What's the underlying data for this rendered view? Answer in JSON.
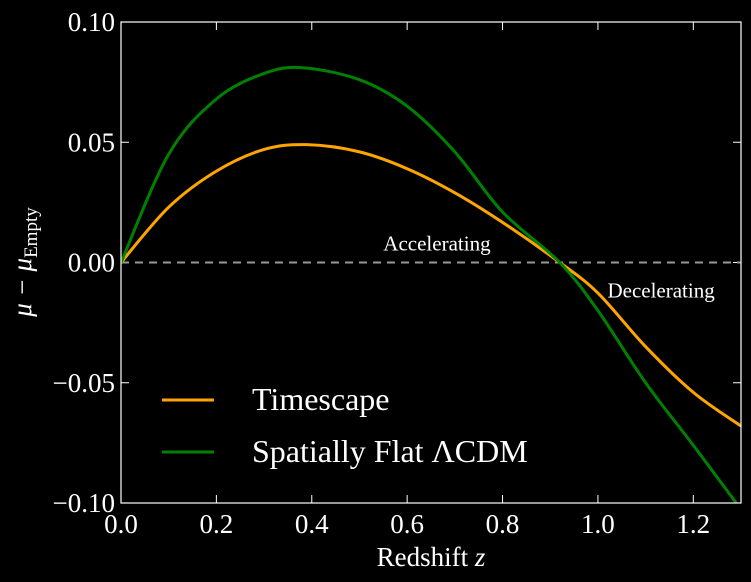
{
  "chart_data": {
    "type": "line",
    "title": "",
    "xlabel": "Redshift",
    "xlabel_var": "z",
    "ylabel": "μ − μ",
    "ylabel_sub": "Empty",
    "xlim": [
      0.0,
      1.3
    ],
    "ylim": [
      -0.1,
      0.1
    ],
    "xticks": [
      "0.0",
      "0.2",
      "0.4",
      "0.6",
      "0.8",
      "1.0",
      "1.2"
    ],
    "xtick_values": [
      0,
      0.2,
      0.4,
      0.6,
      0.8,
      1.0,
      1.2
    ],
    "yticks": [
      "0.10",
      "0.05",
      "0.00",
      "−0.05",
      "−0.10"
    ],
    "ytick_values": [
      0.1,
      0.05,
      0.0,
      -0.05,
      -0.1
    ],
    "grid": false,
    "legend_position": "lower-left",
    "reference_line": {
      "y": 0.0,
      "style": "dashed",
      "color": "#999999"
    },
    "annotations": [
      {
        "text": "Accelerating",
        "x": 0.55,
        "y": 0.005
      },
      {
        "text": "Decelerating",
        "x": 1.02,
        "y": -0.012
      }
    ],
    "series": [
      {
        "name": "Timescape",
        "color": "#ffa500",
        "x": [
          0,
          0.1,
          0.2,
          0.3,
          0.39,
          0.5,
          0.6,
          0.7,
          0.8,
          0.92,
          1.0,
          1.1,
          1.2,
          1.3
        ],
        "y": [
          0,
          0.023,
          0.038,
          0.047,
          0.049,
          0.046,
          0.039,
          0.029,
          0.0167,
          0,
          -0.0127,
          -0.035,
          -0.054,
          -0.068
        ]
      },
      {
        "name": "Spatially Flat ΛCDM",
        "color": "#008000",
        "x": [
          0,
          0.1,
          0.2,
          0.3,
          0.38,
          0.5,
          0.6,
          0.7,
          0.8,
          0.92,
          1.0,
          1.1,
          1.2,
          1.29
        ],
        "y": [
          0,
          0.045,
          0.068,
          0.0786,
          0.081,
          0.076,
          0.065,
          0.046,
          0.021,
          0,
          -0.02,
          -0.05,
          -0.076,
          -0.1
        ]
      }
    ]
  }
}
